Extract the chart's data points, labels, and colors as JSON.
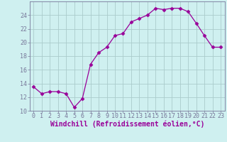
{
  "x": [
    0,
    1,
    2,
    3,
    4,
    5,
    6,
    7,
    8,
    9,
    10,
    11,
    12,
    13,
    14,
    15,
    16,
    17,
    18,
    19,
    20,
    21,
    22,
    23
  ],
  "y": [
    13.5,
    12.5,
    12.8,
    12.8,
    12.5,
    10.5,
    11.8,
    16.8,
    18.5,
    19.3,
    21.0,
    21.3,
    23.0,
    23.5,
    24.0,
    25.0,
    24.8,
    25.0,
    25.0,
    24.5,
    22.8,
    21.0,
    19.3,
    19.3
  ],
  "line_color": "#990099",
  "marker": "D",
  "marker_size": 2.5,
  "line_width": 0.9,
  "bg_color": "#cff0f0",
  "grid_color": "#aacccc",
  "xlabel": "Windchill (Refroidissement éolien,°C)",
  "xlim": [
    -0.5,
    23.5
  ],
  "ylim": [
    10,
    26
  ],
  "yticks": [
    10,
    12,
    14,
    16,
    18,
    20,
    22,
    24
  ],
  "xticks": [
    0,
    1,
    2,
    3,
    4,
    5,
    6,
    7,
    8,
    9,
    10,
    11,
    12,
    13,
    14,
    15,
    16,
    17,
    18,
    19,
    20,
    21,
    22,
    23
  ],
  "tick_label_color": "#990099",
  "xlabel_color": "#990099",
  "xlabel_fontsize": 7.0,
  "tick_fontsize": 6.0,
  "spine_color": "#777799"
}
